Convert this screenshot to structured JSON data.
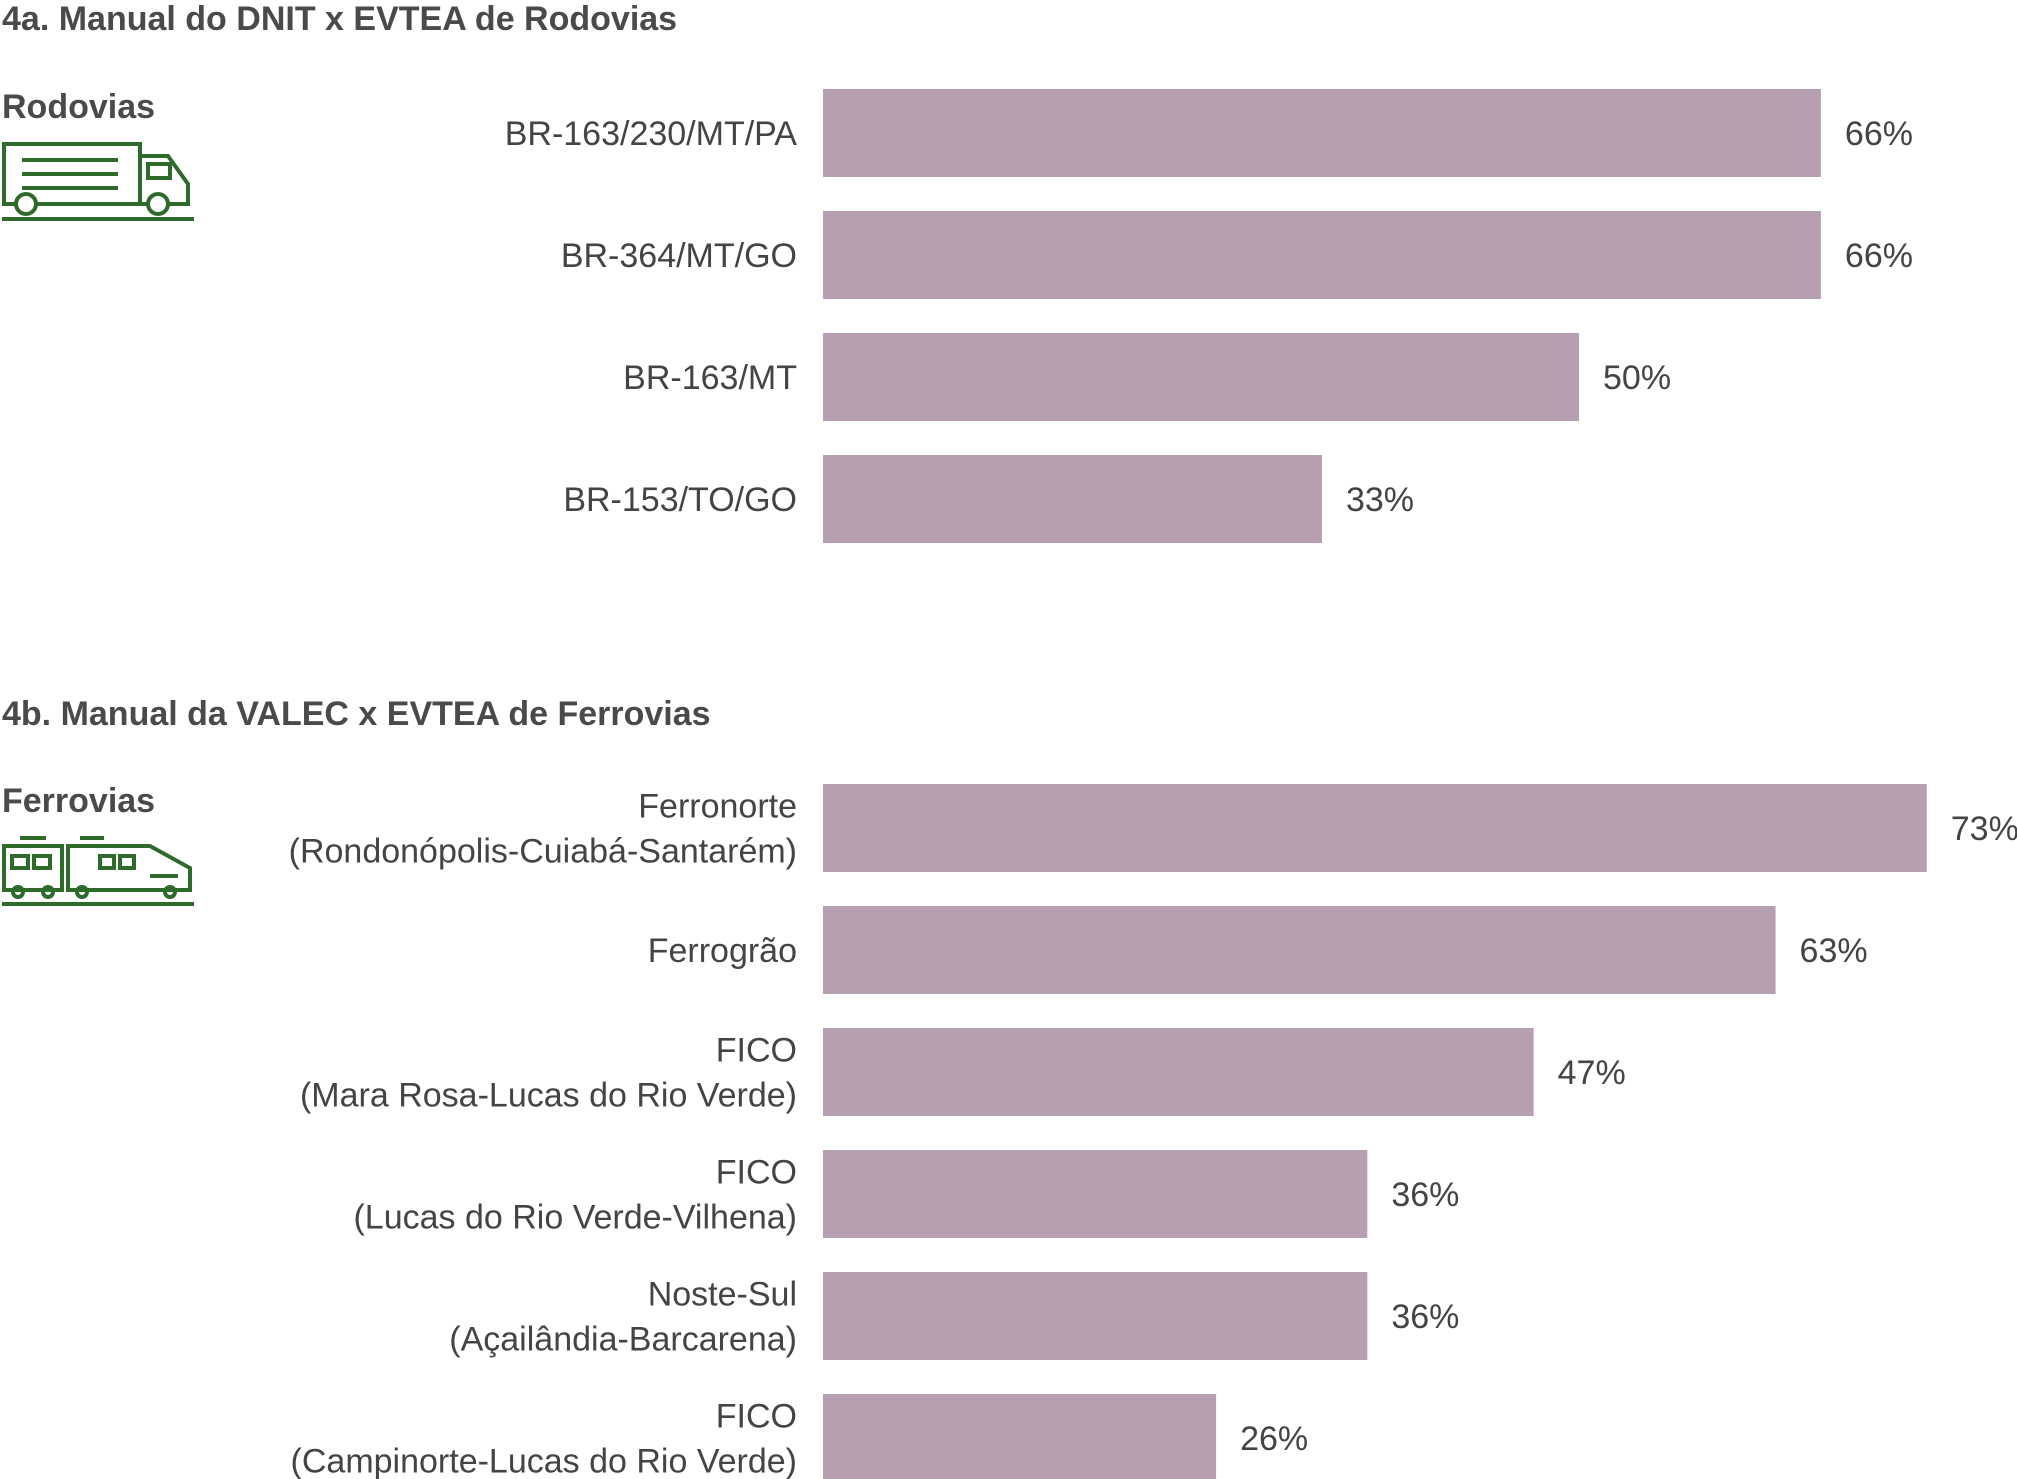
{
  "colors": {
    "bar": "#b79fb2",
    "icon": "#2e6b2b",
    "text": "#444444"
  },
  "chart_data": [
    {
      "type": "bar",
      "orientation": "horizontal",
      "title": "4a. Manual do DNIT x EVTEA de Rodovias",
      "group_label": "Rodovias",
      "icon": "truck-icon",
      "categories": [
        [
          "BR-163/230/MT/PA"
        ],
        [
          "BR-364/MT/GO"
        ],
        [
          "BR-163/MT"
        ],
        [
          "BR-153/TO/GO"
        ]
      ],
      "values": [
        66,
        66,
        50,
        33
      ],
      "value_labels": [
        "66%",
        "66%",
        "50%",
        "33%"
      ],
      "unit": "%"
    },
    {
      "type": "bar",
      "orientation": "horizontal",
      "title": "4b. Manual da VALEC x EVTEA de Ferrovias",
      "group_label": "Ferrovias",
      "icon": "train-icon",
      "categories": [
        [
          "Ferronorte",
          "(Rondonópolis-Cuiabá-Santarém)"
        ],
        [
          "Ferrogrão"
        ],
        [
          "FICO",
          "(Mara Rosa-Lucas do Rio Verde)"
        ],
        [
          "FICO",
          "(Lucas do Rio Verde-Vilhena)"
        ],
        [
          "Noste-Sul",
          "(Açailândia-Barcarena)"
        ],
        [
          "FICO",
          "(Campinorte-Lucas do Rio Verde)"
        ]
      ],
      "values": [
        73,
        63,
        47,
        36,
        36,
        26
      ],
      "value_labels": [
        "73%",
        "63%",
        "47%",
        "36%",
        "36%",
        "26%"
      ],
      "unit": "%"
    }
  ]
}
